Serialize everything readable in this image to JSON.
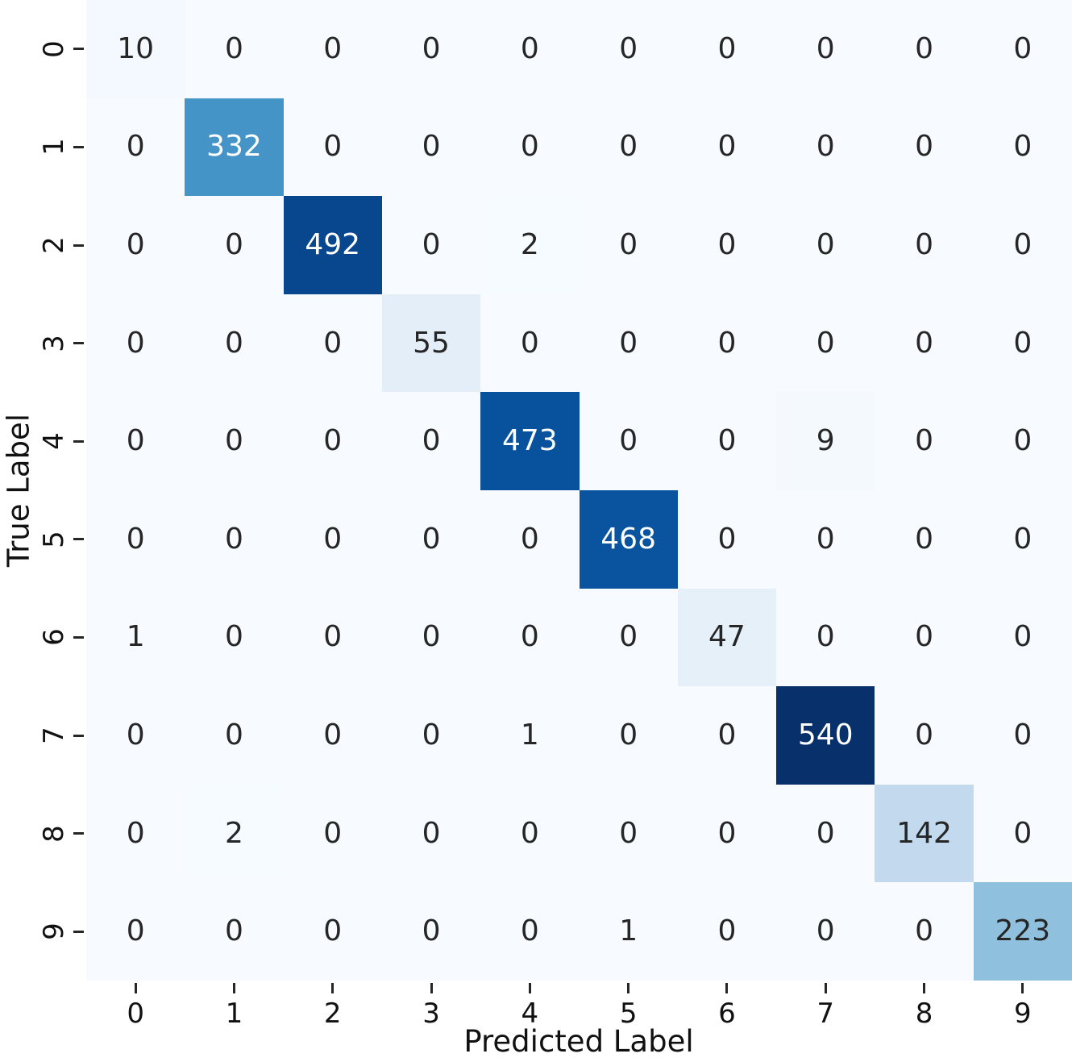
{
  "chart_data": {
    "type": "heatmap",
    "subtype": "confusion-matrix",
    "xlabel": "Predicted Label",
    "ylabel": "True Label",
    "x_tick_labels": [
      "0",
      "1",
      "2",
      "3",
      "4",
      "5",
      "6",
      "7",
      "8",
      "9"
    ],
    "y_tick_labels": [
      "0",
      "1",
      "2",
      "3",
      "4",
      "5",
      "6",
      "7",
      "8",
      "9"
    ],
    "matrix": [
      [
        10,
        0,
        0,
        0,
        0,
        0,
        0,
        0,
        0,
        0
      ],
      [
        0,
        332,
        0,
        0,
        0,
        0,
        0,
        0,
        0,
        0
      ],
      [
        0,
        0,
        492,
        0,
        2,
        0,
        0,
        0,
        0,
        0
      ],
      [
        0,
        0,
        0,
        55,
        0,
        0,
        0,
        0,
        0,
        0
      ],
      [
        0,
        0,
        0,
        0,
        473,
        0,
        0,
        9,
        0,
        0
      ],
      [
        0,
        0,
        0,
        0,
        0,
        468,
        0,
        0,
        0,
        0
      ],
      [
        1,
        0,
        0,
        0,
        0,
        0,
        47,
        0,
        0,
        0
      ],
      [
        0,
        0,
        0,
        0,
        1,
        0,
        0,
        540,
        0,
        0
      ],
      [
        0,
        2,
        0,
        0,
        0,
        0,
        0,
        0,
        142,
        0
      ],
      [
        0,
        0,
        0,
        0,
        0,
        1,
        0,
        0,
        0,
        223
      ]
    ],
    "vmin": 0,
    "vmax": 540,
    "colormap": "Blues",
    "colormap_stops": [
      [
        0.0,
        "#f7fbff"
      ],
      [
        0.125,
        "#deebf7"
      ],
      [
        0.25,
        "#c6dbef"
      ],
      [
        0.375,
        "#9ecae1"
      ],
      [
        0.5,
        "#6baed6"
      ],
      [
        0.625,
        "#4292c6"
      ],
      [
        0.75,
        "#2171b5"
      ],
      [
        0.875,
        "#08519c"
      ],
      [
        1.0,
        "#08306b"
      ]
    ],
    "annotation_color_dark": "#262626",
    "annotation_color_light": "#ffffff",
    "axis_text_color": "#111111",
    "figure_background": "#ffffff",
    "grid": "off",
    "legend": "none"
  }
}
